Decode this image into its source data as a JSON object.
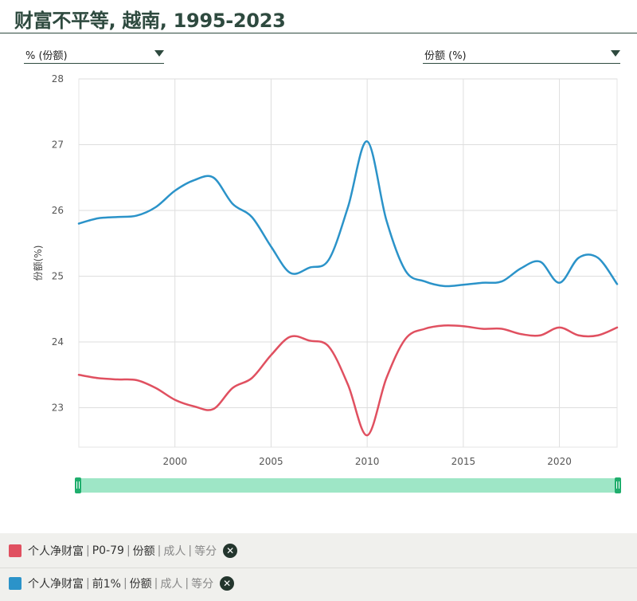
{
  "title": "财富不平等, 越南, 1995-2023",
  "controls": {
    "left_dropdown": "% (份额)",
    "right_dropdown": "份额 (%)"
  },
  "legend": [
    {
      "color": "#e05060",
      "name": "个人净财富",
      "group": "P0-79",
      "measure": "份额",
      "unit": "成人",
      "method": "等分"
    },
    {
      "color": "#2b93c9",
      "name": "个人净财富",
      "group": "前1%",
      "measure": "份额",
      "unit": "成人",
      "method": "等分"
    }
  ],
  "chart_data": {
    "type": "line",
    "title": "财富不平等, 越南, 1995-2023",
    "xlabel": "",
    "ylabel": "份额(%)",
    "xlim": [
      1995,
      2023
    ],
    "ylim": [
      22.4,
      28
    ],
    "x_ticks": [
      2000,
      2005,
      2010,
      2015,
      2020
    ],
    "y_ticks": [
      23,
      24,
      25,
      26,
      27,
      28
    ],
    "grid": true,
    "x": [
      1995,
      1996,
      1997,
      1998,
      1999,
      2000,
      2001,
      2002,
      2003,
      2004,
      2005,
      2006,
      2007,
      2008,
      2009,
      2010,
      2011,
      2012,
      2013,
      2014,
      2015,
      2016,
      2017,
      2018,
      2019,
      2020,
      2021,
      2022,
      2023
    ],
    "series": [
      {
        "name": "个人净财富 | P0-79 | 份额 | 成人 | 等分",
        "color": "#e05060",
        "values": [
          23.5,
          23.45,
          23.43,
          23.42,
          23.3,
          23.12,
          23.02,
          22.98,
          23.3,
          23.45,
          23.8,
          24.08,
          24.02,
          23.93,
          23.35,
          22.58,
          23.45,
          24.05,
          24.2,
          24.25,
          24.24,
          24.2,
          24.2,
          24.12,
          24.1,
          24.22,
          24.1,
          24.1,
          24.22
        ]
      },
      {
        "name": "个人净财富 | 前1% | 份额 | 成人 | 等分",
        "color": "#2b93c9",
        "values": [
          25.8,
          25.88,
          25.9,
          25.92,
          26.05,
          26.3,
          26.46,
          26.5,
          26.1,
          25.9,
          25.45,
          25.05,
          25.13,
          25.25,
          26.05,
          27.05,
          25.85,
          25.08,
          24.92,
          24.85,
          24.87,
          24.9,
          24.92,
          25.12,
          25.22,
          24.9,
          25.28,
          25.28,
          24.88
        ]
      }
    ]
  }
}
